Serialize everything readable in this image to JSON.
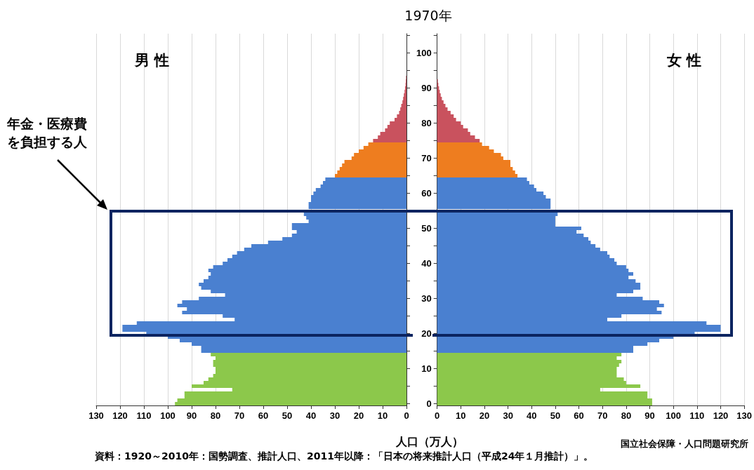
{
  "chart_data": [
    {
      "type": "bar",
      "orientation": "horizontal",
      "title": "1970年",
      "xlabel": "人口（万人）",
      "tick_labels": "x",
      "grid": "x",
      "annotations": [
        "男 性",
        "年金・医療費を負担する人",
        "資料：1920～2010年：国勢調査、推計人口、2011年以降：「日本の将来推計人口（平成24年１月推計）」。",
        "国立社会保障・人口問題研究所"
      ],
      "categories": [
        null,
        null,
        null,
        null,
        null,
        "100",
        null,
        null,
        null,
        null,
        null,
        null,
        null,
        null,
        null,
        "90",
        null,
        null,
        null,
        null,
        null,
        null,
        null,
        null,
        null,
        "80",
        null,
        null,
        null,
        null,
        null,
        null,
        null,
        null,
        null,
        "70",
        null,
        null,
        null,
        null,
        null,
        null,
        null,
        null,
        null,
        "60",
        null,
        null,
        null,
        null,
        null,
        null,
        null,
        null,
        null,
        "50",
        null,
        null,
        null,
        null,
        null,
        null,
        null,
        null,
        null,
        "40",
        null,
        null,
        null,
        null,
        null,
        null,
        null,
        null,
        null,
        "30",
        null,
        null,
        null,
        null,
        null,
        null,
        null,
        null,
        null,
        "20",
        null,
        null,
        null,
        null,
        null,
        null,
        null,
        null,
        null,
        "10",
        null,
        null,
        null,
        null,
        null,
        null,
        null,
        null,
        null,
        "0"
      ],
      "values": [
        null,
        null,
        null,
        null,
        null,
        null,
        null,
        null,
        null,
        null,
        null,
        null,
        0.2,
        0.3,
        0.4,
        0.6,
        0.8,
        1.1,
        1.4,
        1.7,
        2.2,
        2.6,
        3.1,
        4,
        5,
        7,
        8,
        9,
        11,
        12,
        14,
        16,
        18,
        20,
        22,
        23,
        26,
        27,
        28,
        29,
        30,
        34,
        35,
        36,
        38,
        39,
        40,
        40,
        41,
        41,
        null,
        43,
        42,
        41,
        48,
        48,
        46,
        48,
        52,
        58,
        65,
        68,
        71,
        73,
        75,
        77,
        81,
        83,
        82,
        83,
        85,
        87,
        86,
        82,
        76,
        87,
        94,
        96,
        92,
        94,
        77,
        72,
        113,
        119,
        119,
        109,
        100,
        95,
        90,
        86,
        86,
        82,
        80,
        81,
        81,
        80,
        80,
        81,
        83,
        85,
        90,
        73,
        93,
        93,
        96,
        97
      ],
      "colors": [
        null,
        null,
        null,
        null,
        null,
        null,
        null,
        null,
        null,
        null,
        null,
        "#c9525e",
        "#c9525e",
        "#c9525e",
        "#c9525e",
        "#c9525e",
        "#c9525e",
        "#c9525e",
        "#c9525e",
        "#c9525e",
        "#c9525e",
        "#c9525e",
        "#c9525e",
        "#c9525e",
        "#c9525e",
        "#c9525e",
        "#c9525e",
        "#c9525e",
        "#c9525e",
        "#c9525e",
        "#c9525e",
        "#ee7d1f",
        "#ee7d1f",
        "#ee7d1f",
        "#ee7d1f",
        "#ee7d1f",
        "#ee7d1f",
        "#ee7d1f",
        "#ee7d1f",
        "#ee7d1f",
        "#ee7d1f",
        "#4a80d0",
        "#4a80d0",
        "#4a80d0",
        "#4a80d0",
        "#4a80d0",
        "#4a80d0",
        "#4a80d0",
        "#4a80d0",
        "#4a80d0",
        "#4a80d0",
        "#4a80d0",
        "#4a80d0",
        "#4a80d0",
        "#4a80d0",
        "#4a80d0",
        "#4a80d0",
        "#4a80d0",
        "#4a80d0",
        "#4a80d0",
        "#4a80d0",
        "#4a80d0",
        "#4a80d0",
        "#4a80d0",
        "#4a80d0",
        "#4a80d0",
        "#4a80d0",
        "#4a80d0",
        "#4a80d0",
        "#4a80d0",
        "#4a80d0",
        "#4a80d0",
        "#4a80d0",
        "#4a80d0",
        "#4a80d0",
        "#4a80d0",
        "#4a80d0",
        "#4a80d0",
        "#4a80d0",
        "#4a80d0",
        "#4a80d0",
        "#4a80d0",
        "#4a80d0",
        "#4a80d0",
        "#4a80d0",
        "#4a80d0",
        "#4a80d0",
        "#4a80d0",
        "#4a80d0",
        "#4a80d0",
        "#4a80d0",
        "#8cc84b",
        "#8cc84b",
        "#8cc84b",
        "#8cc84b",
        "#8cc84b",
        "#8cc84b",
        "#8cc84b",
        "#8cc84b",
        "#8cc84b",
        "#8cc84b",
        "#8cc84b",
        "#8cc84b",
        "#8cc84b",
        "#8cc84b",
        "#8cc84b"
      ],
      "xlim": [
        130,
        0
      ],
      "xticks": [
        0,
        10,
        20,
        30,
        40,
        50,
        60,
        70,
        80,
        90,
        100,
        110,
        120,
        130
      ]
    },
    {
      "type": "bar",
      "orientation": "horizontal",
      "grid": "x",
      "annotations": [
        "女 性"
      ],
      "categories": [
        null,
        null,
        null,
        null,
        null,
        "100",
        null,
        null,
        null,
        null,
        null,
        null,
        null,
        null,
        null,
        "90",
        null,
        null,
        null,
        null,
        null,
        null,
        null,
        null,
        null,
        "80",
        null,
        null,
        null,
        null,
        null,
        null,
        null,
        null,
        null,
        "70",
        null,
        null,
        null,
        null,
        null,
        null,
        null,
        null,
        null,
        "60",
        null,
        null,
        null,
        null,
        null,
        null,
        null,
        null,
        null,
        "50",
        null,
        null,
        null,
        null,
        null,
        null,
        null,
        null,
        null,
        "40",
        null,
        null,
        null,
        null,
        null,
        null,
        null,
        null,
        null,
        "30",
        null,
        null,
        null,
        null,
        null,
        null,
        null,
        null,
        null,
        "20",
        null,
        null,
        null,
        null,
        null,
        null,
        null,
        null,
        null,
        "10",
        null,
        null,
        null,
        null,
        null,
        null,
        null,
        null,
        null,
        "0"
      ],
      "values": [
        null,
        null,
        null,
        null,
        null,
        null,
        null,
        null,
        null,
        null,
        null,
        null,
        null,
        0.3,
        0.5,
        0.8,
        1.1,
        1.5,
        2,
        2.7,
        3.5,
        4.4,
        5.7,
        7,
        8,
        10,
        11,
        13,
        14,
        16,
        18,
        19,
        22,
        24,
        27,
        28,
        31,
        31,
        32,
        33,
        34,
        38,
        39,
        41,
        42,
        45,
        46,
        48,
        48,
        48,
        null,
        51,
        50,
        50,
        50,
        61,
        59,
        62,
        64,
        65,
        67,
        69,
        72,
        73,
        75,
        76,
        80,
        81,
        83,
        81,
        84,
        86,
        86,
        83,
        76,
        87,
        94,
        96,
        93,
        95,
        78,
        72,
        114,
        120,
        120,
        109,
        100,
        94,
        89,
        83,
        83,
        78,
        76,
        78,
        77,
        76,
        76,
        76,
        79,
        80,
        86,
        69,
        89,
        89,
        91,
        91
      ],
      "colors": [
        null,
        null,
        null,
        null,
        null,
        null,
        null,
        null,
        null,
        null,
        null,
        "#c9525e",
        "#c9525e",
        "#c9525e",
        "#c9525e",
        "#c9525e",
        "#c9525e",
        "#c9525e",
        "#c9525e",
        "#c9525e",
        "#c9525e",
        "#c9525e",
        "#c9525e",
        "#c9525e",
        "#c9525e",
        "#c9525e",
        "#c9525e",
        "#c9525e",
        "#c9525e",
        "#c9525e",
        "#c9525e",
        "#ee7d1f",
        "#ee7d1f",
        "#ee7d1f",
        "#ee7d1f",
        "#ee7d1f",
        "#ee7d1f",
        "#ee7d1f",
        "#ee7d1f",
        "#ee7d1f",
        "#ee7d1f",
        "#4a80d0",
        "#4a80d0",
        "#4a80d0",
        "#4a80d0",
        "#4a80d0",
        "#4a80d0",
        "#4a80d0",
        "#4a80d0",
        "#4a80d0",
        "#4a80d0",
        "#4a80d0",
        "#4a80d0",
        "#4a80d0",
        "#4a80d0",
        "#4a80d0",
        "#4a80d0",
        "#4a80d0",
        "#4a80d0",
        "#4a80d0",
        "#4a80d0",
        "#4a80d0",
        "#4a80d0",
        "#4a80d0",
        "#4a80d0",
        "#4a80d0",
        "#4a80d0",
        "#4a80d0",
        "#4a80d0",
        "#4a80d0",
        "#4a80d0",
        "#4a80d0",
        "#4a80d0",
        "#4a80d0",
        "#4a80d0",
        "#4a80d0",
        "#4a80d0",
        "#4a80d0",
        "#4a80d0",
        "#4a80d0",
        "#4a80d0",
        "#4a80d0",
        "#4a80d0",
        "#4a80d0",
        "#4a80d0",
        "#4a80d0",
        "#4a80d0",
        "#4a80d0",
        "#4a80d0",
        "#4a80d0",
        "#4a80d0",
        "#8cc84b",
        "#8cc84b",
        "#8cc84b",
        "#8cc84b",
        "#8cc84b",
        "#8cc84b",
        "#8cc84b",
        "#8cc84b",
        "#8cc84b",
        "#8cc84b",
        "#8cc84b",
        "#8cc84b",
        "#8cc84b",
        "#8cc84b",
        "#8cc84b"
      ],
      "xlim": [
        0,
        130
      ],
      "xticks": [
        0,
        10,
        20,
        30,
        40,
        50,
        60,
        70,
        80,
        90,
        100,
        110,
        120,
        130
      ]
    }
  ]
}
